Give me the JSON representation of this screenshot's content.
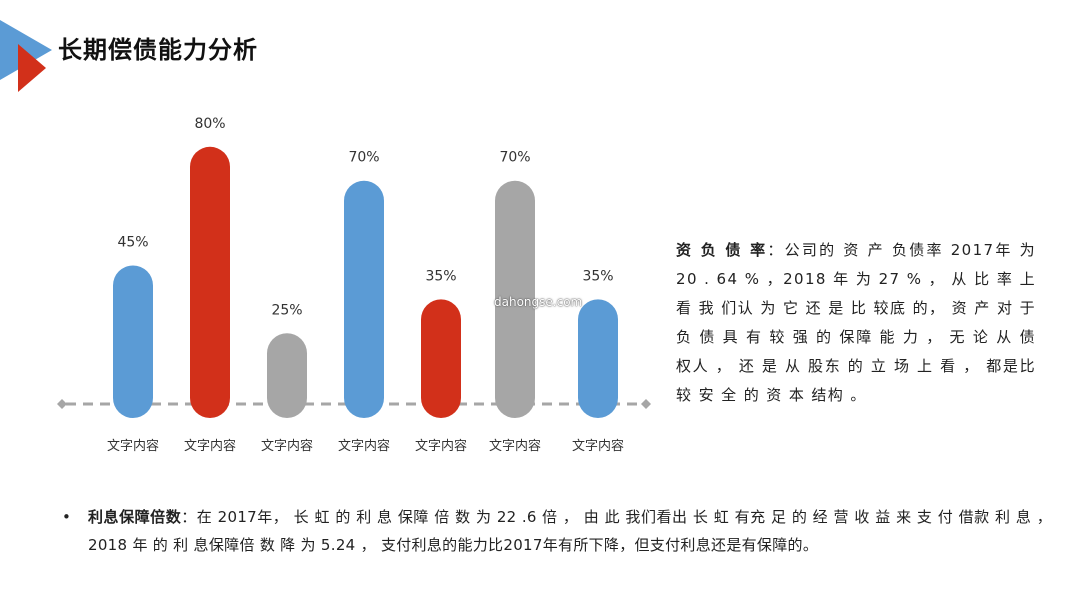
{
  "header": {
    "title": "长期偿债能力分析",
    "logo_icon": "blue-red-triangles-icon"
  },
  "colors": {
    "blue": "#5b9bd5",
    "red": "#d2301a",
    "gray": "#a6a6a6",
    "axis": "#a6a6a6",
    "label": "#333333"
  },
  "chart_data": {
    "type": "bar",
    "categories": [
      "文字内容",
      "文字内容",
      "文字内容",
      "文字内容",
      "文字内容",
      "文字内容",
      "文字内容"
    ],
    "values": [
      45,
      80,
      25,
      70,
      35,
      70,
      35
    ],
    "value_labels": [
      "45%",
      "80%",
      "25%",
      "70%",
      "35%",
      "70%",
      "35%"
    ],
    "bar_colors": [
      "blue",
      "red",
      "gray",
      "blue",
      "red",
      "gray",
      "blue"
    ],
    "title": "",
    "xlabel": "",
    "ylabel": "",
    "ylim": [
      0,
      100
    ],
    "grid": false,
    "legend": "none"
  },
  "side_text": {
    "label": "资 负 债 率",
    "separator": "：",
    "body": "公司的 资 产 负债率 2017年 为 20 . 64 % ，2018 年 为 27 % ， 从 比 率 上 看 我 们认 为 它 还 是 比 较底 的， 资 产 对 于 负 债 具 有 较 强 的 保障 能 力 ， 无 论 从 债权人 ， 还 是 从 股东 的 立 场 上 看 ， 都是比 较 安 全 的 资 本 结构 。"
  },
  "note": {
    "bullet": "•",
    "label": "利息保障倍数",
    "separator": "：",
    "body": "在 2017年， 长 虹 的 利 息 保障 倍 数 为 22 .6 倍 ， 由 此 我们看出 长 虹 有充 足 的 经 营 收 益 来 支 付 借款 利 息 ，2018 年 的 利 息保障倍 数 降 为 5.24 ， 支付利息的能力比2017年有所下降，但支付利息还是有保障的。"
  },
  "watermark": "dahongse.com"
}
